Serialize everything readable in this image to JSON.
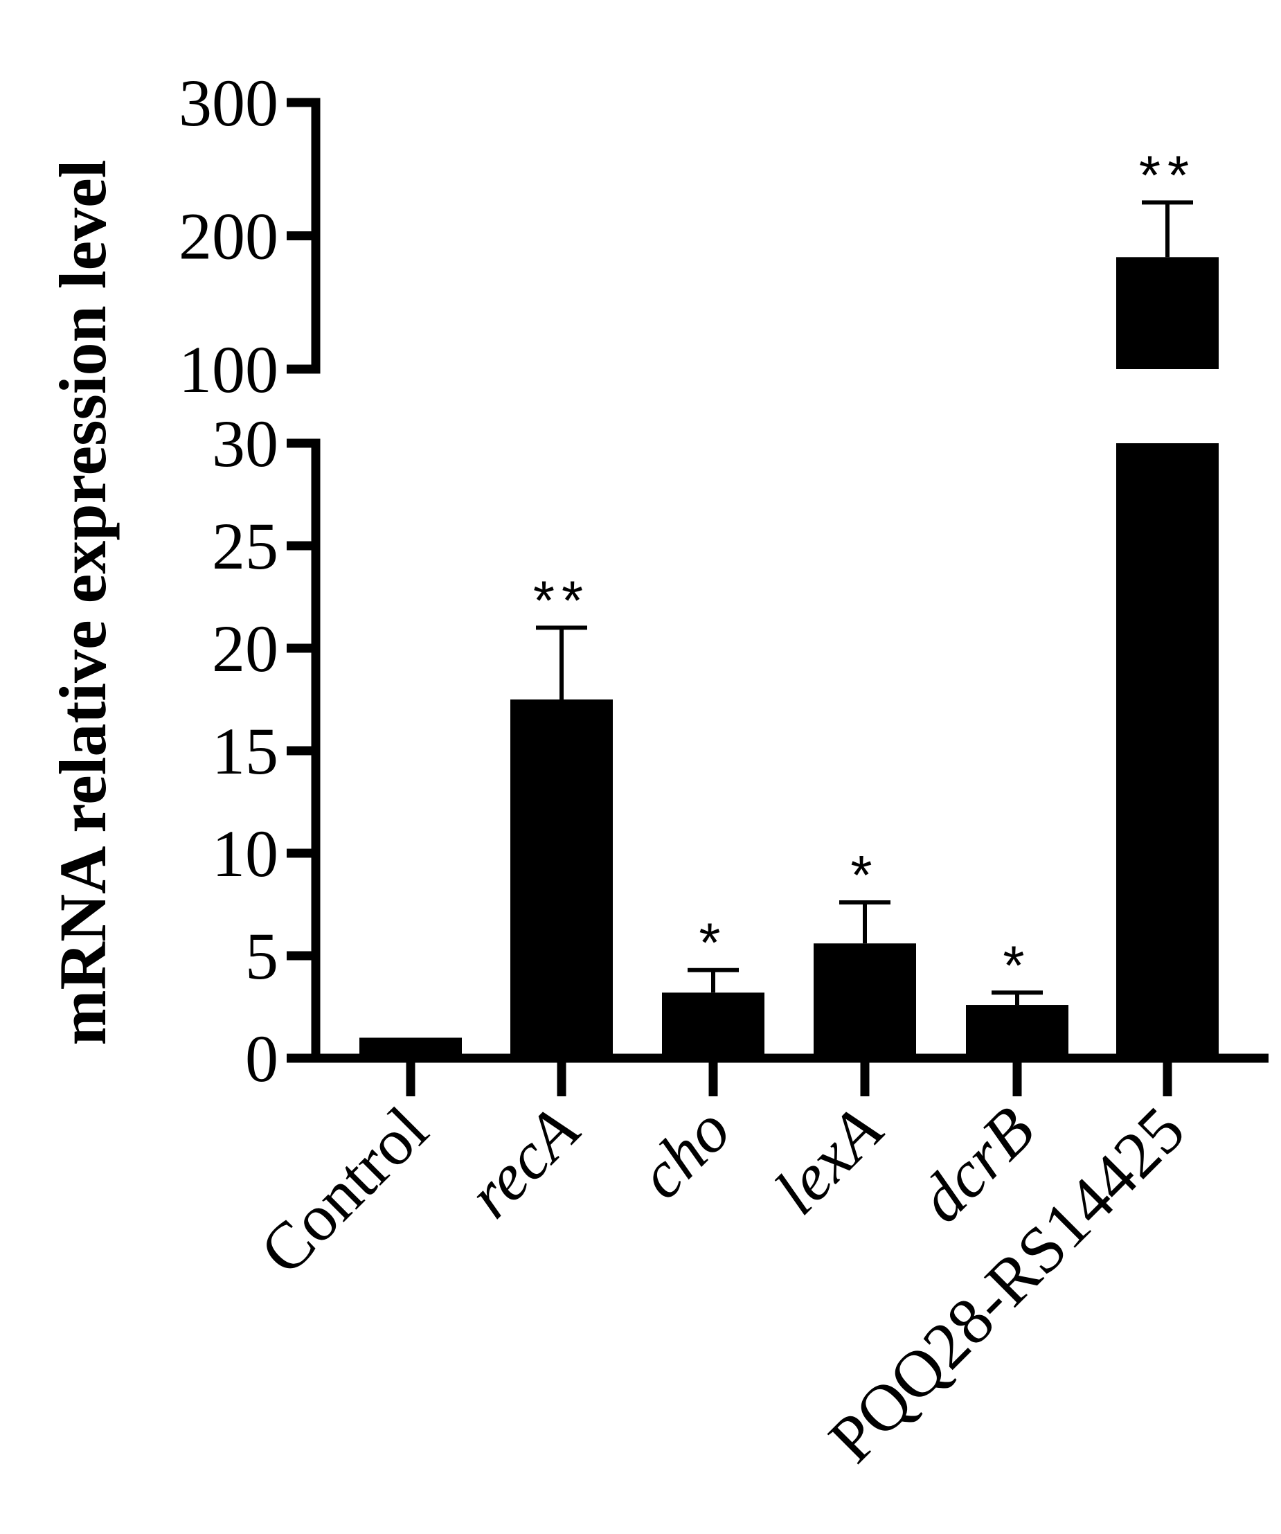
{
  "chart_data": {
    "type": "bar",
    "ylabel": "mRNA relative expression level",
    "xlabel": "",
    "title": "",
    "categories": [
      "Control",
      "recA",
      "cho",
      "lexA",
      "dcrB",
      "PQQ28-RS14425"
    ],
    "italic_categories": [
      false,
      true,
      true,
      true,
      true,
      false
    ],
    "values": [
      1,
      17.5,
      3.2,
      5.6,
      2.6,
      184
    ],
    "errors": [
      0,
      3.5,
      1.1,
      2.0,
      0.6,
      41
    ],
    "significance": [
      "",
      "**",
      "*",
      "*",
      "*",
      "**"
    ],
    "y_axis_broken": true,
    "lower_segment": {
      "ylim": [
        0,
        30
      ],
      "ticks": [
        0,
        5,
        10,
        15,
        20,
        25,
        30
      ]
    },
    "upper_segment": {
      "ylim": [
        100,
        300
      ],
      "ticks": [
        100,
        200,
        300
      ]
    },
    "bar_color": "#000000",
    "grid": false,
    "legend": "none"
  }
}
